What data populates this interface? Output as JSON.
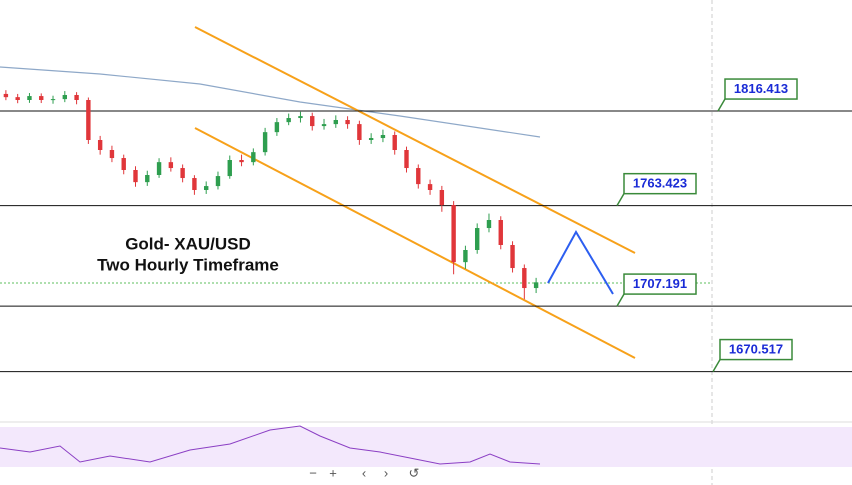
{
  "chart_data": {
    "type": "candlestick",
    "title": "Gold- XAU/USD",
    "subtitle": "Two Hourly Timeframe",
    "open": [
      1826.0,
      1824.2,
      1822.6,
      1824.8,
      1822.6,
      1823.1,
      1825.4,
      1822.6,
      1800.2,
      1794.6,
      1790.1,
      1783.4,
      1776.6,
      1780.6,
      1787.8,
      1784.5,
      1778.9,
      1772.2,
      1774.4,
      1780.0,
      1789.0,
      1787.8,
      1793.4,
      1804.6,
      1810.2,
      1812.5,
      1813.6,
      1808.0,
      1809.1,
      1811.4,
      1809.1,
      1800.2,
      1801.3,
      1803.0,
      1794.6,
      1784.5,
      1775.5,
      1772.2,
      1763.8,
      1731.8,
      1738.6,
      1750.9,
      1755.4,
      1741.4,
      1728.5,
      1717.3
    ],
    "high": [
      1828.1,
      1826.0,
      1826.5,
      1826.3,
      1825.0,
      1827.6,
      1827.0,
      1824.0,
      1802.5,
      1797.0,
      1792.0,
      1785.5,
      1783.0,
      1790.0,
      1790.5,
      1786.5,
      1780.5,
      1777.0,
      1782.5,
      1791.5,
      1792.0,
      1795.5,
      1807.0,
      1812.5,
      1815.0,
      1816.0,
      1815.5,
      1812.0,
      1814.0,
      1813.5,
      1811.0,
      1804.0,
      1806.0,
      1805.0,
      1796.5,
      1786.5,
      1778.0,
      1774.5,
      1766.0,
      1741.0,
      1753.5,
      1759.0,
      1757.5,
      1743.5,
      1730.5,
      1723.0
    ],
    "low": [
      1822.5,
      1820.8,
      1821.0,
      1820.9,
      1820.5,
      1821.4,
      1820.2,
      1798.0,
      1792.0,
      1787.8,
      1781.0,
      1774.0,
      1774.5,
      1779.0,
      1782.5,
      1776.5,
      1769.5,
      1770.0,
      1772.5,
      1778.5,
      1785.5,
      1786.0,
      1791.5,
      1802.5,
      1808.5,
      1810.0,
      1805.5,
      1806.0,
      1807.0,
      1806.5,
      1797.5,
      1798.0,
      1799.0,
      1792.0,
      1782.0,
      1773.0,
      1769.5,
      1760.0,
      1725.0,
      1728.0,
      1736.5,
      1748.5,
      1739.0,
      1726.0,
      1711.0,
      1714.5
    ],
    "close": [
      1824.2,
      1822.6,
      1824.8,
      1822.6,
      1823.1,
      1825.4,
      1822.6,
      1800.2,
      1794.6,
      1790.1,
      1783.4,
      1776.6,
      1780.6,
      1787.8,
      1784.5,
      1778.9,
      1772.2,
      1774.4,
      1780.0,
      1789.0,
      1787.8,
      1793.4,
      1804.6,
      1810.2,
      1812.5,
      1813.6,
      1808.0,
      1809.1,
      1811.4,
      1809.1,
      1800.2,
      1801.3,
      1803.0,
      1794.6,
      1784.5,
      1775.5,
      1772.2,
      1763.8,
      1731.8,
      1738.6,
      1750.9,
      1755.4,
      1741.4,
      1728.5,
      1717.3,
      1720.5
    ],
    "up_color": "#2e9e4f",
    "down_color": "#e0363a",
    "ylim": [
      1643.4,
      1878.6
    ],
    "levels": [
      1816.413,
      1763.423,
      1707.191,
      1670.517
    ],
    "toolbar": [
      "−",
      "+",
      "‹",
      "›",
      "↺"
    ]
  }
}
